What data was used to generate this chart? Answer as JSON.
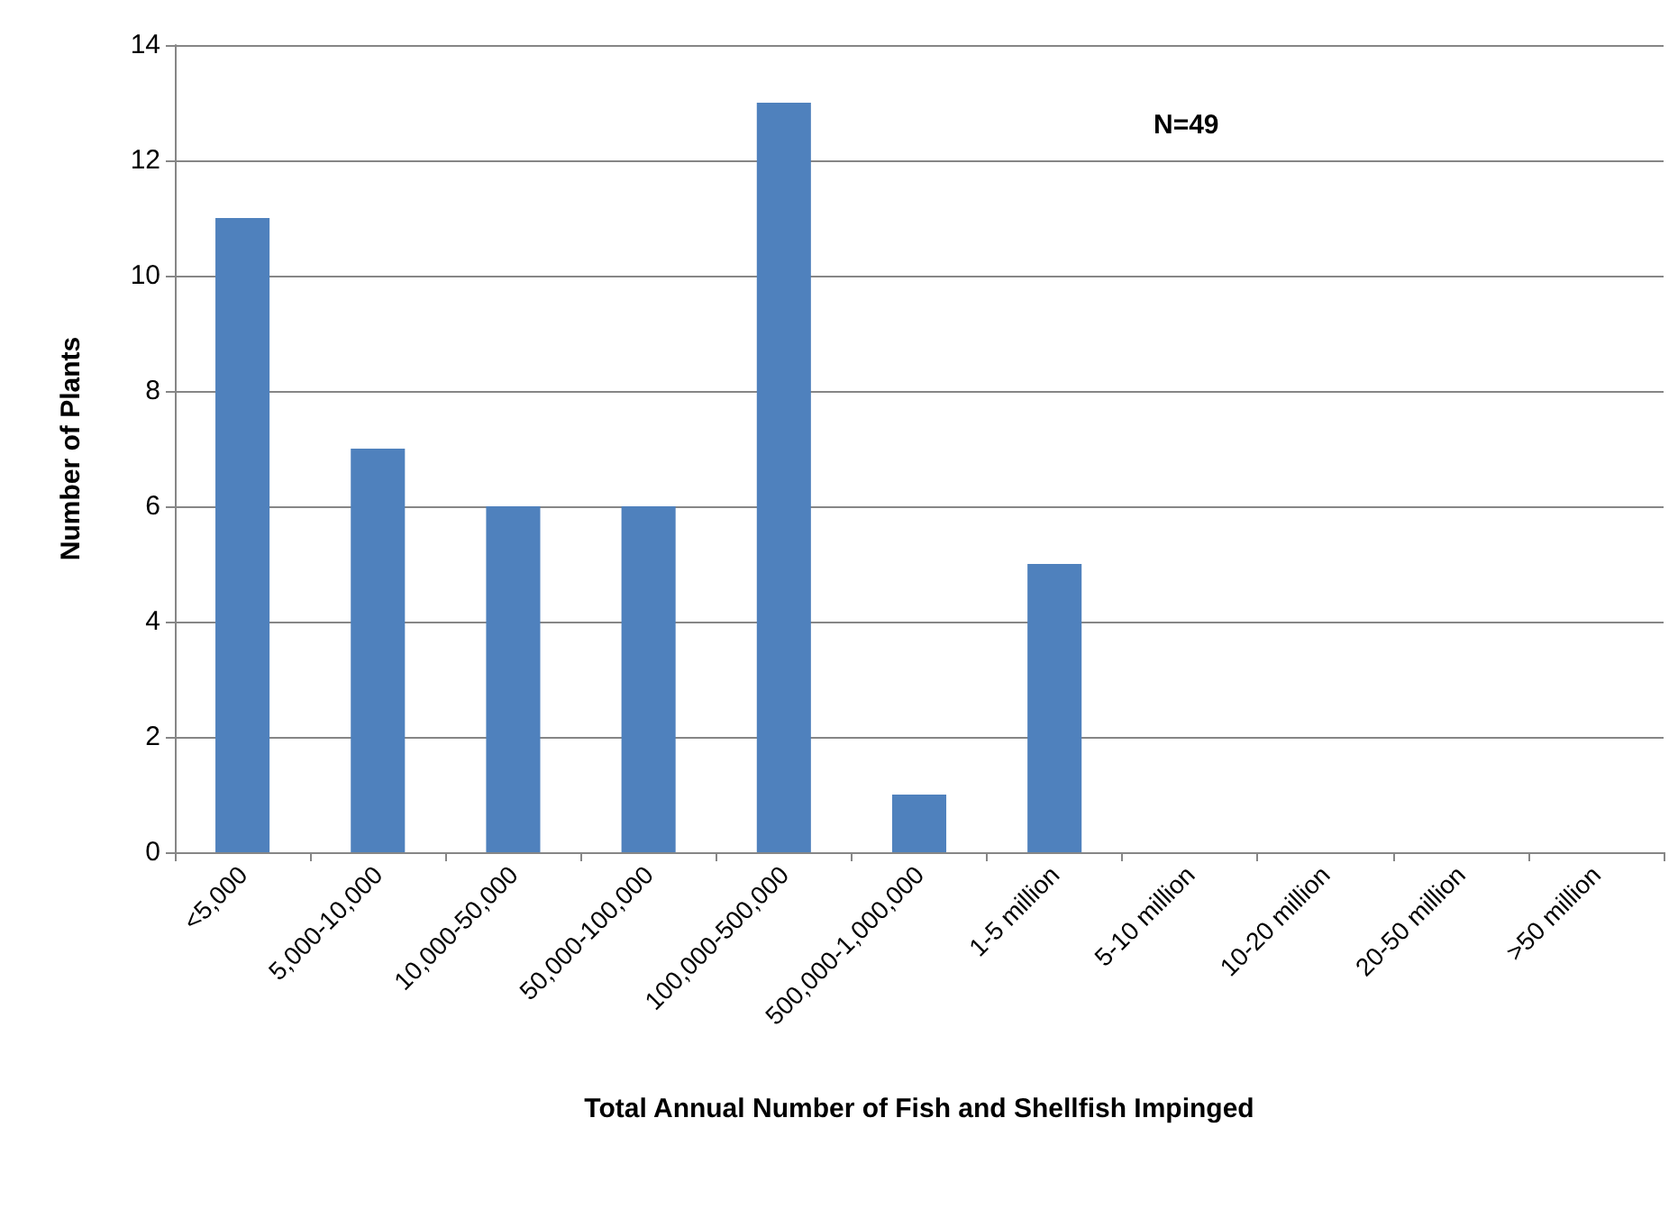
{
  "chart_data": {
    "type": "bar",
    "xlabel": "Total Annual Number of Fish and Shellfish Impinged",
    "ylabel": "Number of Plants",
    "categories": [
      "<5,000",
      "5,000-10,000",
      "10,000-50,000",
      "50,000-100,000",
      "100,000-500,000",
      "500,000-1,000,000",
      "1-5 million",
      "5-10 million",
      "10-20 million",
      "20-50 million",
      ">50 million"
    ],
    "values": [
      11,
      7,
      6,
      6,
      13,
      1,
      5,
      0,
      0,
      0,
      0
    ],
    "color": "#4f81bd",
    "ylim": [
      0,
      14
    ],
    "yticks": [
      0,
      2,
      4,
      6,
      8,
      10,
      12,
      14
    ],
    "grid": "y",
    "annotations": [
      "N=49"
    ]
  }
}
